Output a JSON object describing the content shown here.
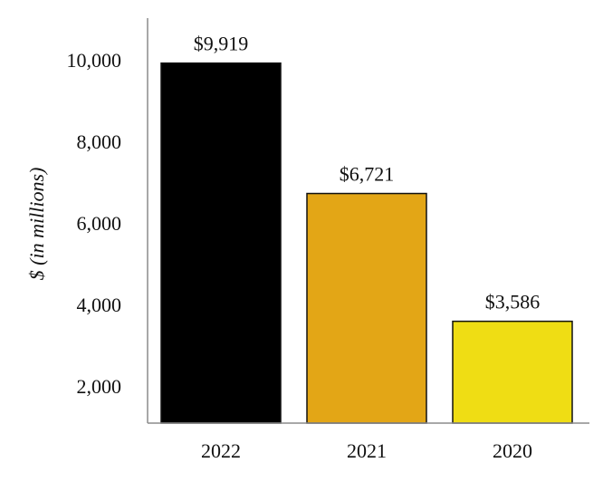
{
  "chart_data": {
    "type": "bar",
    "categories": [
      "2022",
      "2021",
      "2020"
    ],
    "values": [
      9919,
      6721,
      3586
    ],
    "data_labels": [
      "$9,919",
      "$6,721",
      "$3,586"
    ],
    "bar_colors": [
      "#000000",
      "#e3a616",
      "#efdd14"
    ],
    "ylabel": "$ (in millions)",
    "xlabel": "",
    "title": "",
    "ylim": [
      1000,
      11000
    ],
    "yticks": [
      2000,
      4000,
      6000,
      8000,
      10000
    ],
    "ytick_labels": [
      "2,000",
      "4,000",
      "6,000",
      "8,000",
      "10,000"
    ],
    "grid": false,
    "legend": "none"
  }
}
